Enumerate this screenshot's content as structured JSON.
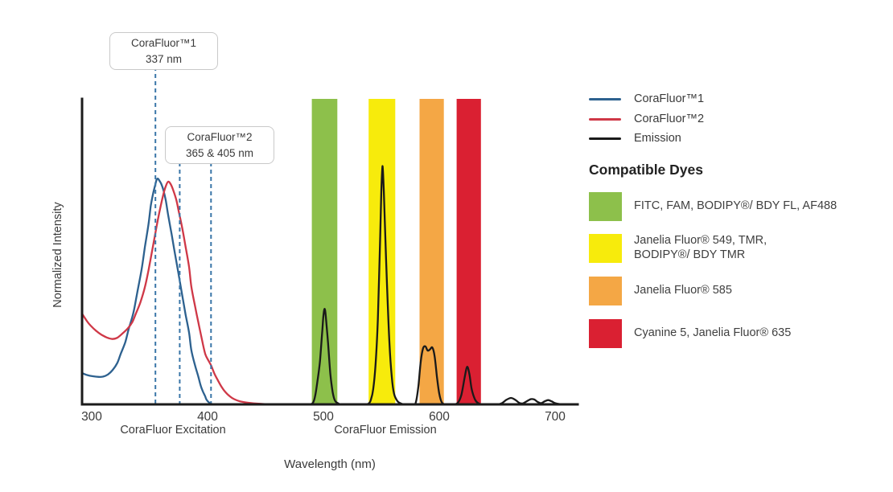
{
  "figure": {
    "y_axis_label": "Normalized Intensity",
    "x_axis_label": "Wavelength (nm)",
    "excitation_caption": "CoraFluor Excitation",
    "emission_caption": "CoraFluor Emission"
  },
  "annotations": [
    {
      "title": "CoraFluor™1",
      "value": "337 nm"
    },
    {
      "title": "CoraFluor™2",
      "value": "365 & 405 nm"
    }
  ],
  "legend": {
    "items": [
      {
        "id": "corafluor1",
        "label": "CoraFluor™1",
        "color": "#2d618f"
      },
      {
        "id": "corafluor2",
        "label": "CoraFluor™2",
        "color": "#cf3847"
      },
      {
        "id": "emission",
        "label": "Emission",
        "color": "#1a1a1a"
      }
    ]
  },
  "compatible_dyes": {
    "heading": "Compatible Dyes",
    "items": [
      {
        "id": "green",
        "label": "FITC, FAM, BODIPY®/ BDY FL, AF488",
        "color": "#8dc04b"
      },
      {
        "id": "yellow",
        "label": "Janelia Fluor® 549, TMR,\nBODIPY®/ BDY TMR",
        "color": "#f7eb0c"
      },
      {
        "id": "orange",
        "label": "Janelia Fluor® 585",
        "color": "#f4a745"
      },
      {
        "id": "red",
        "label": "Cyanine 5, Janelia Fluor® 635",
        "color": "#da2032"
      }
    ]
  },
  "chart_data": {
    "type": "line",
    "title": "",
    "xlabel": "Wavelength (nm)",
    "ylabel": "Normalized Intensity",
    "x_ticks": [
      300,
      400,
      500,
      600,
      700
    ],
    "x_range": [
      292,
      720
    ],
    "y_range": [
      0,
      1
    ],
    "grid": false,
    "legend_position": "right",
    "axis_color": "#1b1b1b",
    "marker_color": "#3a76a8",
    "series": [
      {
        "id": "corafluor1-excitation",
        "name": "CoraFluor™1",
        "color": "#2d618f",
        "points": [
          [
            292,
            0.102
          ],
          [
            296,
            0.096
          ],
          [
            301,
            0.092
          ],
          [
            306,
            0.09
          ],
          [
            310,
            0.091
          ],
          [
            314,
            0.098
          ],
          [
            318,
            0.112
          ],
          [
            322,
            0.135
          ],
          [
            325,
            0.165
          ],
          [
            329,
            0.204
          ],
          [
            332,
            0.248
          ],
          [
            336,
            0.3
          ],
          [
            339,
            0.36
          ],
          [
            343,
            0.44
          ],
          [
            346,
            0.517
          ],
          [
            349,
            0.59
          ],
          [
            351,
            0.65
          ],
          [
            353,
            0.69
          ],
          [
            355,
            0.721
          ],
          [
            356,
            0.735
          ],
          [
            357,
            0.739
          ],
          [
            358,
            0.735
          ],
          [
            360,
            0.722
          ],
          [
            362,
            0.7
          ],
          [
            364,
            0.666
          ],
          [
            366,
            0.62
          ],
          [
            369,
            0.556
          ],
          [
            372,
            0.49
          ],
          [
            375,
            0.426
          ],
          [
            378,
            0.36
          ],
          [
            381,
            0.295
          ],
          [
            384,
            0.235
          ],
          [
            386,
            0.178
          ],
          [
            389,
            0.13
          ],
          [
            392,
            0.091
          ],
          [
            394,
            0.062
          ],
          [
            396,
            0.042
          ],
          [
            398,
            0.026
          ],
          [
            399,
            0.016
          ],
          [
            401,
            0.007
          ],
          [
            403,
            0.002
          ],
          [
            406,
            0
          ]
        ]
      },
      {
        "id": "corafluor2-excitation",
        "name": "CoraFluor™2",
        "color": "#cf3847",
        "points": [
          [
            292,
            0.295
          ],
          [
            296,
            0.272
          ],
          [
            299,
            0.258
          ],
          [
            304,
            0.24
          ],
          [
            308,
            0.229
          ],
          [
            313,
            0.219
          ],
          [
            318,
            0.214
          ],
          [
            322,
            0.218
          ],
          [
            326,
            0.23
          ],
          [
            331,
            0.248
          ],
          [
            335,
            0.269
          ],
          [
            338,
            0.296
          ],
          [
            342,
            0.334
          ],
          [
            346,
            0.385
          ],
          [
            349,
            0.439
          ],
          [
            352,
            0.5
          ],
          [
            356,
            0.582
          ],
          [
            359,
            0.64
          ],
          [
            362,
            0.69
          ],
          [
            364,
            0.715
          ],
          [
            366,
            0.729
          ],
          [
            368,
            0.722
          ],
          [
            370,
            0.705
          ],
          [
            373,
            0.67
          ],
          [
            375,
            0.634
          ],
          [
            378,
            0.58
          ],
          [
            381,
            0.517
          ],
          [
            384,
            0.45
          ],
          [
            386,
            0.386
          ],
          [
            389,
            0.325
          ],
          [
            392,
            0.269
          ],
          [
            395,
            0.215
          ],
          [
            398,
            0.165
          ],
          [
            401,
            0.142
          ],
          [
            403,
            0.128
          ],
          [
            406,
            0.1
          ],
          [
            409,
            0.078
          ],
          [
            412,
            0.058
          ],
          [
            415,
            0.042
          ],
          [
            419,
            0.027
          ],
          [
            423,
            0.017
          ],
          [
            428,
            0.01
          ],
          [
            436,
            0.005
          ],
          [
            444,
            0.002
          ],
          [
            455,
            0
          ]
        ]
      },
      {
        "id": "emission",
        "name": "Emission",
        "color": "#1a1a1a",
        "points": [
          [
            488,
            0
          ],
          [
            491,
            0.005
          ],
          [
            493,
            0.03
          ],
          [
            495,
            0.08
          ],
          [
            497,
            0.14
          ],
          [
            499,
            0.24
          ],
          [
            500,
            0.29
          ],
          [
            501,
            0.313
          ],
          [
            502,
            0.29
          ],
          [
            504,
            0.2
          ],
          [
            506,
            0.1
          ],
          [
            508,
            0.04
          ],
          [
            510,
            0.012
          ],
          [
            513,
            0.003
          ],
          [
            516,
            0
          ],
          [
            535,
            0
          ],
          [
            539,
            0.003
          ],
          [
            541,
            0.015
          ],
          [
            543,
            0.05
          ],
          [
            545,
            0.13
          ],
          [
            547,
            0.28
          ],
          [
            549,
            0.55
          ],
          [
            550,
            0.7
          ],
          [
            551,
            0.78
          ],
          [
            552,
            0.71
          ],
          [
            553,
            0.6
          ],
          [
            555,
            0.38
          ],
          [
            557,
            0.2
          ],
          [
            559,
            0.09
          ],
          [
            561,
            0.035
          ],
          [
            564,
            0.01
          ],
          [
            567,
            0.003
          ],
          [
            570,
            0
          ],
          [
            578,
            0
          ],
          [
            580,
            0.01
          ],
          [
            582,
            0.06
          ],
          [
            584,
            0.14
          ],
          [
            586,
            0.183
          ],
          [
            588,
            0.19
          ],
          [
            590,
            0.176
          ],
          [
            592,
            0.18
          ],
          [
            594,
            0.186
          ],
          [
            596,
            0.158
          ],
          [
            598,
            0.09
          ],
          [
            600,
            0.035
          ],
          [
            602,
            0.008
          ],
          [
            605,
            0
          ],
          [
            612,
            0
          ],
          [
            616,
            0.005
          ],
          [
            619,
            0.03
          ],
          [
            622,
            0.09
          ],
          [
            624,
            0.123
          ],
          [
            626,
            0.1
          ],
          [
            628,
            0.05
          ],
          [
            631,
            0.015
          ],
          [
            634,
            0.003
          ],
          [
            638,
            0
          ],
          [
            650,
            0
          ],
          [
            654,
            0.004
          ],
          [
            658,
            0.015
          ],
          [
            662,
            0.021
          ],
          [
            666,
            0.014
          ],
          [
            669,
            0.005
          ],
          [
            672,
            0.003
          ],
          [
            675,
            0.009
          ],
          [
            679,
            0.017
          ],
          [
            682,
            0.016
          ],
          [
            685,
            0.008
          ],
          [
            688,
            0.004
          ],
          [
            691,
            0.01
          ],
          [
            694,
            0.014
          ],
          [
            697,
            0.01
          ],
          [
            700,
            0.004
          ],
          [
            704,
            0.001
          ],
          [
            708,
            0
          ],
          [
            719,
            0
          ]
        ]
      }
    ],
    "bands": [
      {
        "id": "green",
        "dyes": "FITC, FAM, BODIPY®/ BDY FL, AF488",
        "color": "#8dc04b",
        "from_nm": 490,
        "to_nm": 512
      },
      {
        "id": "yellow",
        "dyes": "Janelia Fluor® 549, TMR, BODIPY®/ BDY TMR",
        "color": "#f7eb0c",
        "from_nm": 539,
        "to_nm": 562
      },
      {
        "id": "orange",
        "dyes": "Janelia Fluor® 585",
        "color": "#f4a745",
        "from_nm": 583,
        "to_nm": 604
      },
      {
        "id": "red",
        "dyes": "Cyanine 5, Janelia Fluor® 635",
        "color": "#da2032",
        "from_nm": 615,
        "to_nm": 636
      }
    ],
    "excitation_markers": [
      {
        "label": "CoraFluor™1 337 nm",
        "x_nm": 355
      },
      {
        "label": "CoraFluor™2 365 nm",
        "x_nm": 376
      },
      {
        "label": "CoraFluor™2 405 nm",
        "x_nm": 403
      }
    ]
  }
}
